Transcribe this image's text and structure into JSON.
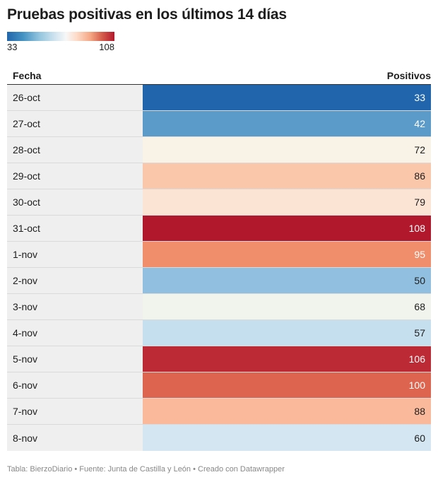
{
  "title": "Pruebas positivas en los últimos 14 días",
  "legend": {
    "min_label": "33",
    "max_label": "108"
  },
  "columns": {
    "fecha": "Fecha",
    "positivos": "Positivos"
  },
  "chart_data": {
    "type": "table",
    "title": "Pruebas positivas en los últimos 14 días",
    "columns": [
      "Fecha",
      "Positivos"
    ],
    "color_scale": {
      "min": 33,
      "max": 108,
      "colors": [
        "#2166ac",
        "#f7f7f7",
        "#b2182b"
      ]
    },
    "rows": [
      {
        "fecha": "26-oct",
        "positivos": "33",
        "color": "#2166ac",
        "text_color": "#ffffff"
      },
      {
        "fecha": "27-oct",
        "positivos": "42",
        "color": "#5a9bca",
        "text_color": "#ffffff"
      },
      {
        "fecha": "28-oct",
        "positivos": "72",
        "color": "#f9f2e6",
        "text_color": "#1d1d1d"
      },
      {
        "fecha": "29-oct",
        "positivos": "86",
        "color": "#fbc7ab",
        "text_color": "#1d1d1d"
      },
      {
        "fecha": "30-oct",
        "positivos": "79",
        "color": "#fce4d5",
        "text_color": "#1d1d1d"
      },
      {
        "fecha": "31-oct",
        "positivos": "108",
        "color": "#b2182b",
        "text_color": "#ffffff"
      },
      {
        "fecha": "1-nov",
        "positivos": "95",
        "color": "#f08e6b",
        "text_color": "#ffffff"
      },
      {
        "fecha": "2-nov",
        "positivos": "50",
        "color": "#91bfdf",
        "text_color": "#1d1d1d"
      },
      {
        "fecha": "3-nov",
        "positivos": "68",
        "color": "#f0f4ec",
        "text_color": "#1d1d1d"
      },
      {
        "fecha": "4-nov",
        "positivos": "57",
        "color": "#c5dfee",
        "text_color": "#1d1d1d"
      },
      {
        "fecha": "5-nov",
        "positivos": "106",
        "color": "#bb2a35",
        "text_color": "#ffffff"
      },
      {
        "fecha": "6-nov",
        "positivos": "100",
        "color": "#dd6550",
        "text_color": "#ffffff"
      },
      {
        "fecha": "7-nov",
        "positivos": "88",
        "color": "#f9b99a",
        "text_color": "#1d1d1d"
      },
      {
        "fecha": "8-nov",
        "positivos": "60",
        "color": "#d3e6f1",
        "text_color": "#1d1d1d"
      }
    ]
  },
  "footer": "Tabla: BierzoDiario • Fuente: Junta de Castilla y León • Creado con Datawrapper"
}
